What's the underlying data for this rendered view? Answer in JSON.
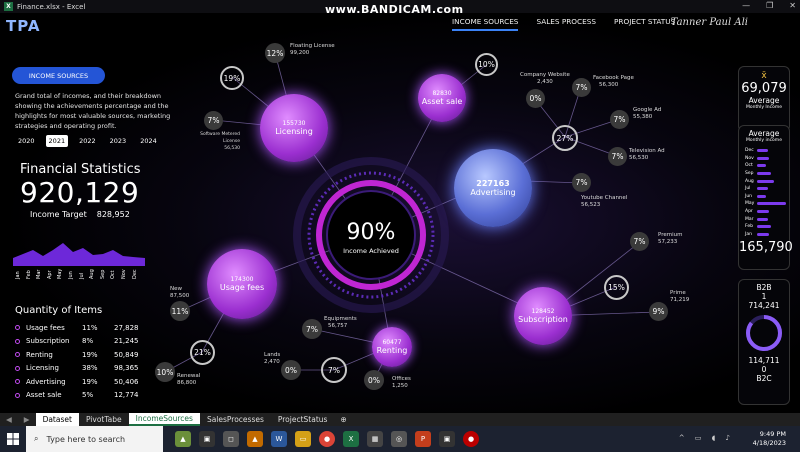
{
  "window": {
    "title": "Finance.xlsx - Excel",
    "watermark": "www.BANDICAM.com"
  },
  "header": {
    "logo": "TPA",
    "nav": [
      "INCOME SOURCES",
      "SALES PROCESS",
      "PROJECT STATUS"
    ],
    "signature": "Tanner Paul Ali"
  },
  "left": {
    "button": "INCOME SOURCES",
    "description": "Grand total of incomes, and their breakdown showing the achievements percentage and the highlights for most valuable sources, marketing strategies and operating profit.",
    "years": [
      "2020",
      "2021",
      "2022",
      "2023",
      "2024"
    ],
    "selected_year": "2021",
    "fs_title": "Financial Statistics",
    "fs_total": "920,129",
    "target_label": "Income Target",
    "target_value": "828,952",
    "months": [
      "Jan",
      "Feb",
      "Mar",
      "Apr",
      "May",
      "Jun",
      "Jul",
      "Aug",
      "Sep",
      "Oct",
      "Nov",
      "Dec"
    ],
    "qty_title": "Quantity of Items",
    "items": [
      {
        "name": "Usage fees",
        "pct": "11%",
        "val": "27,828"
      },
      {
        "name": "Subscription",
        "pct": "8%",
        "val": "21,245"
      },
      {
        "name": "Renting",
        "pct": "19%",
        "val": "50,849"
      },
      {
        "name": "Licensing",
        "pct": "38%",
        "val": "98,365"
      },
      {
        "name": "Advertising",
        "pct": "19%",
        "val": "50,406"
      },
      {
        "name": "Asset sale",
        "pct": "5%",
        "val": "12,774"
      }
    ]
  },
  "center": {
    "pct": "90%",
    "label": "Income Achieved"
  },
  "bubbles": {
    "licensing": {
      "v": "155730",
      "t": "Licensing"
    },
    "asset": {
      "v": "82830",
      "t": "Asset sale"
    },
    "advertising": {
      "v": "227163",
      "t": "Advertising"
    },
    "usage": {
      "v": "174300",
      "t": "Usage fees"
    },
    "renting": {
      "v": "60477",
      "t": "Renting"
    },
    "subscription": {
      "v": "128452",
      "t": "Subscription"
    }
  },
  "pcts": {
    "p19": "19%",
    "p12": "12%",
    "p7a": "7%",
    "p10": "10%",
    "p0a": "0%",
    "p7b": "7%",
    "p27": "27%",
    "p7c": "7%",
    "p7d": "7%",
    "p7e": "7%",
    "p7f": "7%",
    "p15": "15%",
    "p9": "9%",
    "p11": "11%",
    "p21": "21%",
    "p10b": "10%",
    "p7g": "7%",
    "p0b": "0%",
    "p7h": "7%",
    "p0c": "0%"
  },
  "labels": {
    "floating": "Floating License",
    "floating_v": "99,200",
    "software": "Software Metered License",
    "software_v": "56,530",
    "company": "Company Website",
    "company_v": "2,430",
    "facebook": "Facebook Page",
    "facebook_v": "56,300",
    "google": "Google Ad",
    "google_v": "55,380",
    "tv": "Television Ad",
    "tv_v": "56,530",
    "youtube": "Youtube Channel",
    "youtube_v": "56,523",
    "premium": "Premium",
    "premium_v": "57,233",
    "prime": "Prime",
    "prime_v": "71,219",
    "new": "New",
    "new_v": "87,500",
    "renewal": "Renewal",
    "renewal_v": "86,800",
    "equipments": "Equipments",
    "equipments_v": "56,757",
    "lands": "Lands",
    "lands_v": "2,470",
    "offices": "Offices",
    "offices_v": "1,250"
  },
  "cards": {
    "symbol": "x̄",
    "avg_value": "69,079",
    "avg_label": "Average",
    "avg_sub": "Monthly Income",
    "avg2_label": "Average",
    "avg2_sub": "Monthly income",
    "months": [
      "Dec",
      "Nov",
      "Oct",
      "Sep",
      "Aug",
      "Jul",
      "Jun",
      "May",
      "Apr",
      "Mar",
      "Feb",
      "Jan"
    ],
    "month_levels": [
      0.35,
      0.4,
      0.3,
      0.45,
      0.55,
      0.35,
      0.3,
      0.95,
      0.4,
      0.35,
      0.45,
      0.4
    ],
    "max_value": "165,790",
    "b2b": "B2B",
    "b2b_count": "1",
    "b2b_value": "714,241",
    "b2c_value": "114,711",
    "b2c_count": "0",
    "b2c": "B2C"
  },
  "sheets": [
    "Dataset",
    "PivotTabe",
    "IncomeSources",
    "SalesProcesses",
    "ProjectStatus"
  ],
  "active_sheet": "IncomeSources",
  "taskbar": {
    "search_placeholder": "Type here to search",
    "time": "9:49 PM",
    "date": "4/18/2023"
  }
}
